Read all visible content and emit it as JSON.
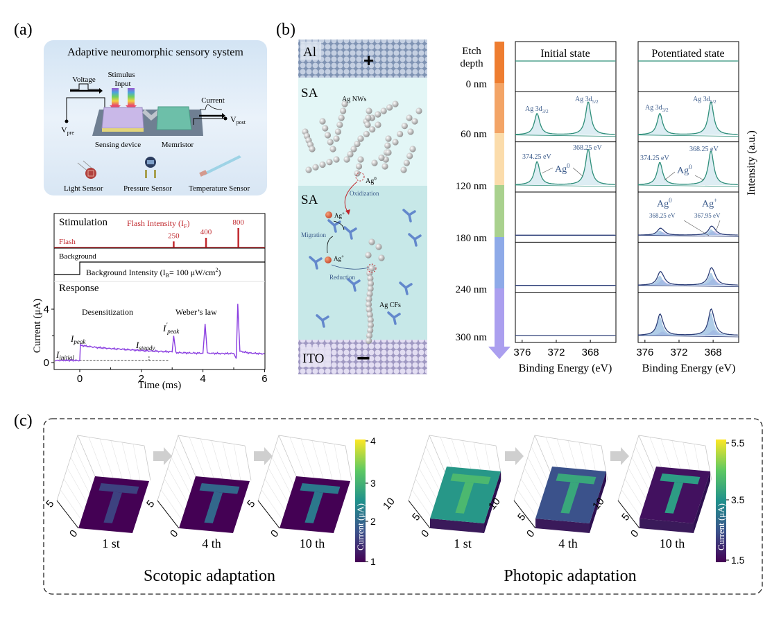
{
  "panels": {
    "a": {
      "label": "(a)",
      "system": {
        "title": "Adaptive neuromorphic sensory system",
        "voltage": "Voltage",
        "stimulus_line1": "Stimulus",
        "stimulus_line2": "Input",
        "current": "Current",
        "v_pre": {
          "base": "V",
          "sub": "pre"
        },
        "v_post": {
          "base": "V",
          "sub": "post"
        },
        "sensing_device": "Sensing device",
        "memristor": "Memristor",
        "sensors": [
          "Light Sensor",
          "Pressure Sensor",
          "Temperature Sensor"
        ]
      }
    },
    "b": {
      "label": "(b)",
      "schematic": {
        "top_electrode": "Al",
        "plus": "+",
        "layer1": "SA",
        "ag_nws": "Ag NWs",
        "ag0": {
          "base": "Ag",
          "sup": "0"
        },
        "oxidization": "Oxidization",
        "layer2": "SA",
        "ag_plus_1": {
          "base": "Ag",
          "sup": "+"
        },
        "migration": "Migration",
        "ag_plus_2": {
          "base": "Ag",
          "sup": "+"
        },
        "reduction": "Reduction",
        "ag_cfs": "Ag CFs",
        "bottom_electrode": "ITO",
        "minus": "−"
      }
    },
    "c": {
      "label": "(c)"
    }
  },
  "colors": {
    "flash": "#c0282d",
    "response": "#8a3ee0",
    "xps_top": "#2f8f7a",
    "xps_bottom": "#2c3e78",
    "ag0_component": "#8fb8de",
    "agplus_component": "#b9a1e6",
    "annotation": "#3a5a8a"
  },
  "chart_data": [
    {
      "id": "response",
      "type": "line",
      "xlabel": "Time (ms)",
      "ylabel": "Current (μA)",
      "xlim": [
        -0.8,
        6
      ],
      "xticks": [
        0,
        2,
        4,
        6
      ],
      "yticks": [
        0,
        4
      ],
      "sections": {
        "stimulation": "Stimulation",
        "background": "Background",
        "response": "Response"
      },
      "flash": {
        "label": "Flash",
        "title": {
          "base": "Flash Intensity (I",
          "sub": "F",
          "end": ")"
        },
        "pulses": [
          {
            "t": 3.05,
            "intensity": 250,
            "label": "250"
          },
          {
            "t": 4.1,
            "intensity": 400,
            "label": "400"
          },
          {
            "t": 5.15,
            "intensity": 800,
            "label": "800"
          }
        ]
      },
      "background": {
        "step_t": 0,
        "label": {
          "base": "Background Intensity (I",
          "sub": "B",
          "mid": "= 100 μW/cm",
          "sup": "2",
          "end": ")"
        }
      },
      "annotations": {
        "desensitization": "Desensitization",
        "weber": "Weber’s law",
        "i_peak": {
          "base": "I",
          "sub": "peak"
        },
        "i_initial": {
          "base": "I",
          "sub": "initial"
        },
        "i_steady": {
          "base": "I",
          "sub": "steady"
        },
        "i_peak_prime": {
          "base": "I",
          "sup": "'",
          "sub": "peak"
        }
      },
      "series": [
        {
          "x": [
            -0.8,
            -0.4,
            0,
            0.02,
            0.3,
            0.6,
            1.0,
            1.5,
            2.0,
            2.5,
            3.0,
            3.05,
            3.12,
            3.5,
            4.0,
            4.07,
            4.14,
            4.5,
            5.0,
            5.08,
            5.13,
            5.2,
            5.5,
            6.0
          ],
          "y": [
            0.15,
            0.17,
            0.15,
            1.3,
            1.2,
            1.12,
            1.05,
            0.98,
            0.9,
            0.85,
            0.8,
            2.0,
            0.75,
            0.72,
            0.7,
            2.9,
            0.7,
            0.68,
            0.68,
            0.3,
            4.4,
            0.85,
            0.72,
            0.65
          ]
        }
      ]
    },
    {
      "id": "xps",
      "type": "line",
      "xlabel": "Binding Energy (eV)",
      "ylabel": "Intensity (a.u.)",
      "xlim": [
        376.8,
        365
      ],
      "xticks": [
        376,
        372,
        368
      ],
      "depth_title_1": "Etch",
      "depth_title_2": "depth",
      "depths": [
        "0 nm",
        "60 nm",
        "120 nm",
        "180 nm",
        "240 nm",
        "300 nm"
      ],
      "depth_colors": [
        "#ee7d30",
        "#f3a466",
        "#fbdcab",
        "#a9d18e",
        "#8eaae8",
        "#ab9fef"
      ],
      "states": [
        {
          "title": "Initial state",
          "rows": [
            {
              "ag0": [],
              "agplus": []
            },
            {
              "ag0": [
                [
                  374.25,
                  0.55
                ],
                [
                  368.25,
                  0.85
                ]
              ],
              "agplus": []
            },
            {
              "ag0": [
                [
                  374.25,
                  0.6
                ],
                [
                  368.25,
                  0.92
                ]
              ],
              "agplus": []
            },
            {
              "ag0": [],
              "agplus": []
            },
            {
              "ag0": [],
              "agplus": []
            },
            {
              "ag0": [],
              "agplus": []
            }
          ]
        },
        {
          "title": "Potentiated state",
          "rows": [
            {
              "ag0": [],
              "agplus": []
            },
            {
              "ag0": [
                [
                  374.25,
                  0.55
                ],
                [
                  368.25,
                  0.85
                ]
              ],
              "agplus": []
            },
            {
              "ag0": [
                [
                  374.25,
                  0.58
                ],
                [
                  368.25,
                  0.88
                ]
              ],
              "agplus": []
            },
            {
              "ag0": [
                [
                  374.25,
                  0.12
                ],
                [
                  368.25,
                  0.15
                ]
              ],
              "agplus": [
                [
                  373.95,
                  0.08
                ],
                [
                  367.95,
                  0.11
                ]
              ]
            },
            {
              "ag0": [
                [
                  374.25,
                  0.25
                ],
                [
                  368.25,
                  0.32
                ]
              ],
              "agplus": [
                [
                  373.95,
                  0.14
                ],
                [
                  367.95,
                  0.18
                ]
              ]
            },
            {
              "ag0": [
                [
                  374.25,
                  0.48
                ],
                [
                  368.25,
                  0.58
                ]
              ],
              "agplus": [
                [
                  373.95,
                  0.1
                ],
                [
                  367.95,
                  0.14
                ]
              ]
            }
          ]
        }
      ],
      "annotations": {
        "ag3d32": {
          "base": "Ag 3d",
          "sub": "3/2"
        },
        "ag3d52": {
          "base": "Ag 3d",
          "sub": "5/2"
        },
        "e374": "374.25 eV",
        "e368": "368.25 eV",
        "e36795": "367.95 eV",
        "ag0": {
          "base": "Ag",
          "sup": "0"
        },
        "agplus": {
          "base": "Ag",
          "sup": "+"
        }
      }
    },
    {
      "id": "scotopic",
      "type": "heatmap",
      "title": "Scotopic adaptation",
      "colorbar": {
        "label": "Current (μA)",
        "range": [
          1,
          4
        ],
        "ticks": [
          "1",
          "2",
          "3",
          "4"
        ]
      },
      "axis_ticks": [
        "0",
        "5"
      ],
      "frames": [
        {
          "label": "1 st",
          "background": 1.0,
          "pattern": 1.6
        },
        {
          "label": "4 th",
          "background": 1.0,
          "pattern": 2.0
        },
        {
          "label": "10 th",
          "background": 1.0,
          "pattern": 2.2
        }
      ]
    },
    {
      "id": "photopic",
      "type": "heatmap",
      "title": "Photopic adaptation",
      "colorbar": {
        "label": "Current (μA)",
        "range": [
          1.5,
          5.5
        ],
        "ticks": [
          "1.5",
          "3.5",
          "5.5"
        ]
      },
      "axis_ticks": [
        "0",
        "5",
        "10"
      ],
      "frames": [
        {
          "label": "1 st",
          "background": 3.6,
          "pattern": 4.2
        },
        {
          "label": "4 th",
          "background": 2.5,
          "pattern": 3.9
        },
        {
          "label": "10 th",
          "background": 1.7,
          "pattern": 3.7
        }
      ]
    }
  ]
}
